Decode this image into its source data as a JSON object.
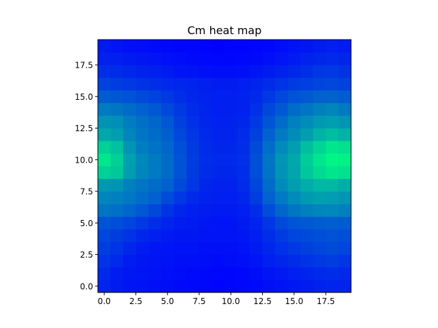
{
  "chart_data": {
    "type": "heatmap",
    "title": "Cm heat map",
    "xlabel": "",
    "ylabel": "",
    "colormap": "winter",
    "color_range": [
      0.0,
      1.0
    ],
    "colors": {
      "low": "#0000ff",
      "high": "#00ff80"
    },
    "xlim": [
      -0.5,
      19.5
    ],
    "ylim": [
      19.5,
      -0.5
    ],
    "y_inverted": true,
    "xticks": [
      0.0,
      2.5,
      5.0,
      7.5,
      10.0,
      12.5,
      15.0,
      17.5
    ],
    "xtick_labels": [
      "0.0",
      "2.5",
      "5.0",
      "7.5",
      "10.0",
      "12.5",
      "15.0",
      "17.5"
    ],
    "yticks": [
      0.0,
      2.5,
      5.0,
      7.5,
      10.0,
      12.5,
      15.0,
      17.5
    ],
    "ytick_labels": [
      "0.0",
      "2.5",
      "5.0",
      "7.5",
      "10.0",
      "12.5",
      "15.0",
      "17.5"
    ],
    "grid": false,
    "colorbar": false,
    "rows": 20,
    "cols": 20,
    "values": [
      [
        0.14,
        0.1,
        0.08,
        0.07,
        0.06,
        0.05,
        0.04,
        0.03,
        0.02,
        0.01,
        0.02,
        0.03,
        0.04,
        0.06,
        0.07,
        0.09,
        0.11,
        0.13,
        0.14,
        0.14
      ],
      [
        0.16,
        0.11,
        0.09,
        0.08,
        0.07,
        0.06,
        0.05,
        0.04,
        0.03,
        0.02,
        0.02,
        0.03,
        0.05,
        0.08,
        0.1,
        0.12,
        0.14,
        0.16,
        0.17,
        0.16
      ],
      [
        0.2,
        0.16,
        0.11,
        0.09,
        0.08,
        0.07,
        0.06,
        0.06,
        0.05,
        0.04,
        0.05,
        0.06,
        0.08,
        0.12,
        0.15,
        0.17,
        0.2,
        0.22,
        0.24,
        0.21
      ],
      [
        0.24,
        0.2,
        0.15,
        0.11,
        0.09,
        0.08,
        0.07,
        0.07,
        0.06,
        0.06,
        0.06,
        0.07,
        0.1,
        0.15,
        0.19,
        0.22,
        0.25,
        0.27,
        0.29,
        0.27
      ],
      [
        0.27,
        0.24,
        0.2,
        0.15,
        0.12,
        0.1,
        0.09,
        0.09,
        0.08,
        0.08,
        0.08,
        0.09,
        0.12,
        0.18,
        0.23,
        0.27,
        0.29,
        0.31,
        0.32,
        0.31
      ],
      [
        0.32,
        0.3,
        0.27,
        0.22,
        0.18,
        0.14,
        0.11,
        0.1,
        0.09,
        0.08,
        0.08,
        0.1,
        0.14,
        0.21,
        0.29,
        0.33,
        0.35,
        0.36,
        0.37,
        0.36
      ],
      [
        0.46,
        0.44,
        0.4,
        0.34,
        0.28,
        0.2,
        0.15,
        0.12,
        0.11,
        0.1,
        0.1,
        0.12,
        0.18,
        0.3,
        0.4,
        0.46,
        0.5,
        0.52,
        0.53,
        0.5
      ],
      [
        0.52,
        0.5,
        0.47,
        0.42,
        0.38,
        0.29,
        0.22,
        0.16,
        0.13,
        0.12,
        0.12,
        0.15,
        0.24,
        0.38,
        0.48,
        0.55,
        0.6,
        0.63,
        0.62,
        0.58
      ],
      [
        0.6,
        0.58,
        0.5,
        0.46,
        0.42,
        0.38,
        0.29,
        0.21,
        0.15,
        0.13,
        0.13,
        0.17,
        0.27,
        0.42,
        0.55,
        0.62,
        0.68,
        0.72,
        0.72,
        0.68
      ],
      [
        0.82,
        0.78,
        0.62,
        0.52,
        0.48,
        0.42,
        0.32,
        0.23,
        0.17,
        0.15,
        0.15,
        0.18,
        0.3,
        0.45,
        0.58,
        0.65,
        0.78,
        0.86,
        0.9,
        0.88
      ],
      [
        0.9,
        0.82,
        0.63,
        0.53,
        0.48,
        0.42,
        0.32,
        0.24,
        0.18,
        0.16,
        0.16,
        0.19,
        0.31,
        0.46,
        0.59,
        0.66,
        0.8,
        0.9,
        0.96,
        0.95
      ],
      [
        0.82,
        0.76,
        0.58,
        0.49,
        0.45,
        0.4,
        0.31,
        0.23,
        0.17,
        0.15,
        0.15,
        0.18,
        0.29,
        0.43,
        0.55,
        0.62,
        0.75,
        0.84,
        0.9,
        0.88
      ],
      [
        0.66,
        0.62,
        0.52,
        0.46,
        0.42,
        0.37,
        0.28,
        0.21,
        0.16,
        0.14,
        0.14,
        0.17,
        0.25,
        0.38,
        0.48,
        0.55,
        0.62,
        0.7,
        0.74,
        0.7
      ],
      [
        0.58,
        0.56,
        0.49,
        0.44,
        0.4,
        0.34,
        0.25,
        0.19,
        0.15,
        0.13,
        0.13,
        0.15,
        0.22,
        0.33,
        0.42,
        0.5,
        0.55,
        0.6,
        0.62,
        0.58
      ],
      [
        0.48,
        0.46,
        0.42,
        0.38,
        0.34,
        0.28,
        0.22,
        0.17,
        0.14,
        0.12,
        0.12,
        0.13,
        0.19,
        0.28,
        0.35,
        0.42,
        0.46,
        0.5,
        0.52,
        0.48
      ],
      [
        0.36,
        0.34,
        0.32,
        0.29,
        0.26,
        0.22,
        0.18,
        0.15,
        0.13,
        0.12,
        0.12,
        0.13,
        0.16,
        0.22,
        0.28,
        0.32,
        0.35,
        0.38,
        0.39,
        0.36
      ],
      [
        0.26,
        0.24,
        0.22,
        0.2,
        0.18,
        0.16,
        0.15,
        0.14,
        0.12,
        0.11,
        0.11,
        0.12,
        0.14,
        0.17,
        0.2,
        0.23,
        0.25,
        0.27,
        0.28,
        0.26
      ],
      [
        0.18,
        0.17,
        0.15,
        0.13,
        0.12,
        0.1,
        0.08,
        0.07,
        0.06,
        0.05,
        0.05,
        0.06,
        0.08,
        0.1,
        0.13,
        0.15,
        0.18,
        0.21,
        0.22,
        0.2
      ],
      [
        0.13,
        0.12,
        0.1,
        0.09,
        0.08,
        0.06,
        0.05,
        0.04,
        0.03,
        0.02,
        0.02,
        0.03,
        0.04,
        0.06,
        0.08,
        0.1,
        0.13,
        0.15,
        0.16,
        0.15
      ],
      [
        0.1,
        0.08,
        0.06,
        0.05,
        0.04,
        0.03,
        0.02,
        0.02,
        0.01,
        0.0,
        0.01,
        0.01,
        0.02,
        0.03,
        0.05,
        0.07,
        0.09,
        0.11,
        0.12,
        0.11
      ]
    ]
  }
}
